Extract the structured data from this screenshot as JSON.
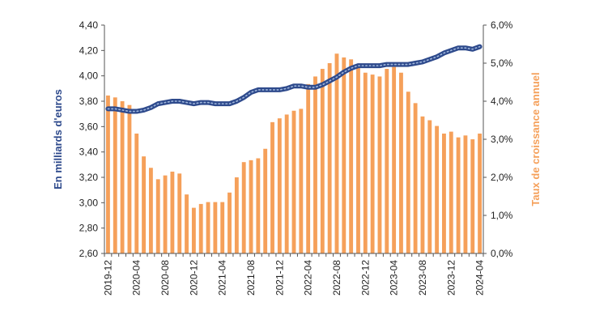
{
  "chart_data": {
    "type": "bar",
    "title": "",
    "x": [
      "2019-12",
      "2020-01",
      "2020-02",
      "2020-03",
      "2020-04",
      "2020-05",
      "2020-06",
      "2020-07",
      "2020-08",
      "2020-09",
      "2020-10",
      "2020-11",
      "2020-12",
      "2021-01",
      "2021-02",
      "2021-03",
      "2021-04",
      "2021-05",
      "2021-06",
      "2021-07",
      "2021-08",
      "2021-09",
      "2021-10",
      "2021-11",
      "2021-12",
      "2022-01",
      "2022-02",
      "2022-03",
      "2022-04",
      "2022-05",
      "2022-06",
      "2022-07",
      "2022-08",
      "2022-09",
      "2022-10",
      "2022-11",
      "2022-12",
      "2023-01",
      "2023-02",
      "2023-03",
      "2023-04",
      "2023-05",
      "2023-06",
      "2023-07",
      "2023-08",
      "2023-09",
      "2023-10",
      "2023-11",
      "2023-12",
      "2024-01",
      "2024-02",
      "2024-03",
      "2024-04"
    ],
    "xtick_labels": [
      "2019-12",
      "2020-04",
      "2020-08",
      "2020-12",
      "2021-04",
      "2021-08",
      "2021-12",
      "2022-04",
      "2022-08",
      "2022-12",
      "2023-04",
      "2023-08",
      "2023-12",
      "2024-04"
    ],
    "series": [
      {
        "name": "",
        "type": "line",
        "axis": "left",
        "values": [
          3.74,
          3.74,
          3.73,
          3.72,
          3.72,
          3.73,
          3.75,
          3.78,
          3.79,
          3.8,
          3.8,
          3.79,
          3.78,
          3.79,
          3.79,
          3.78,
          3.78,
          3.78,
          3.8,
          3.83,
          3.87,
          3.89,
          3.89,
          3.89,
          3.89,
          3.9,
          3.92,
          3.92,
          3.91,
          3.91,
          3.93,
          3.96,
          3.99,
          4.03,
          4.06,
          4.08,
          4.08,
          4.08,
          4.08,
          4.09,
          4.09,
          4.09,
          4.09,
          4.1,
          4.11,
          4.13,
          4.15,
          4.18,
          4.2,
          4.22,
          4.22,
          4.21,
          4.23
        ]
      },
      {
        "name": "",
        "type": "bar",
        "axis": "right",
        "values": [
          4.15,
          4.1,
          4.0,
          3.9,
          3.15,
          2.55,
          2.25,
          1.95,
          2.05,
          2.15,
          2.1,
          1.55,
          1.2,
          1.3,
          1.35,
          1.35,
          1.35,
          1.6,
          2.0,
          2.4,
          2.45,
          2.5,
          2.75,
          3.45,
          3.55,
          3.65,
          3.75,
          3.8,
          4.45,
          4.65,
          4.85,
          5.0,
          5.25,
          5.15,
          5.1,
          4.95,
          4.75,
          4.7,
          4.65,
          4.85,
          4.9,
          4.75,
          4.25,
          3.95,
          3.6,
          3.5,
          3.35,
          3.15,
          3.2,
          3.05,
          3.1,
          3.0,
          3.15
        ]
      }
    ],
    "ylabel": "En milliards d'euros",
    "y2label": "Taux de croissance annuel",
    "ylim": [
      2.6,
      4.4
    ],
    "y2lim": [
      0,
      6
    ],
    "ytick_labels": [
      "2,60",
      "2,80",
      "3,00",
      "3,20",
      "3,40",
      "3,60",
      "3,80",
      "4,00",
      "4,20",
      "4,40"
    ],
    "y2tick_labels": [
      "0,0%",
      "1,0%",
      "2,0%",
      "3,0%",
      "4,0%",
      "5,0%",
      "6,0%"
    ],
    "grid": false,
    "colors": {
      "line": "#2e4a8c",
      "line_dots": "#9fb6dc",
      "bar": "#f5a05a",
      "left_label": "#2e4a8c",
      "right_label": "#f5a05a"
    }
  }
}
